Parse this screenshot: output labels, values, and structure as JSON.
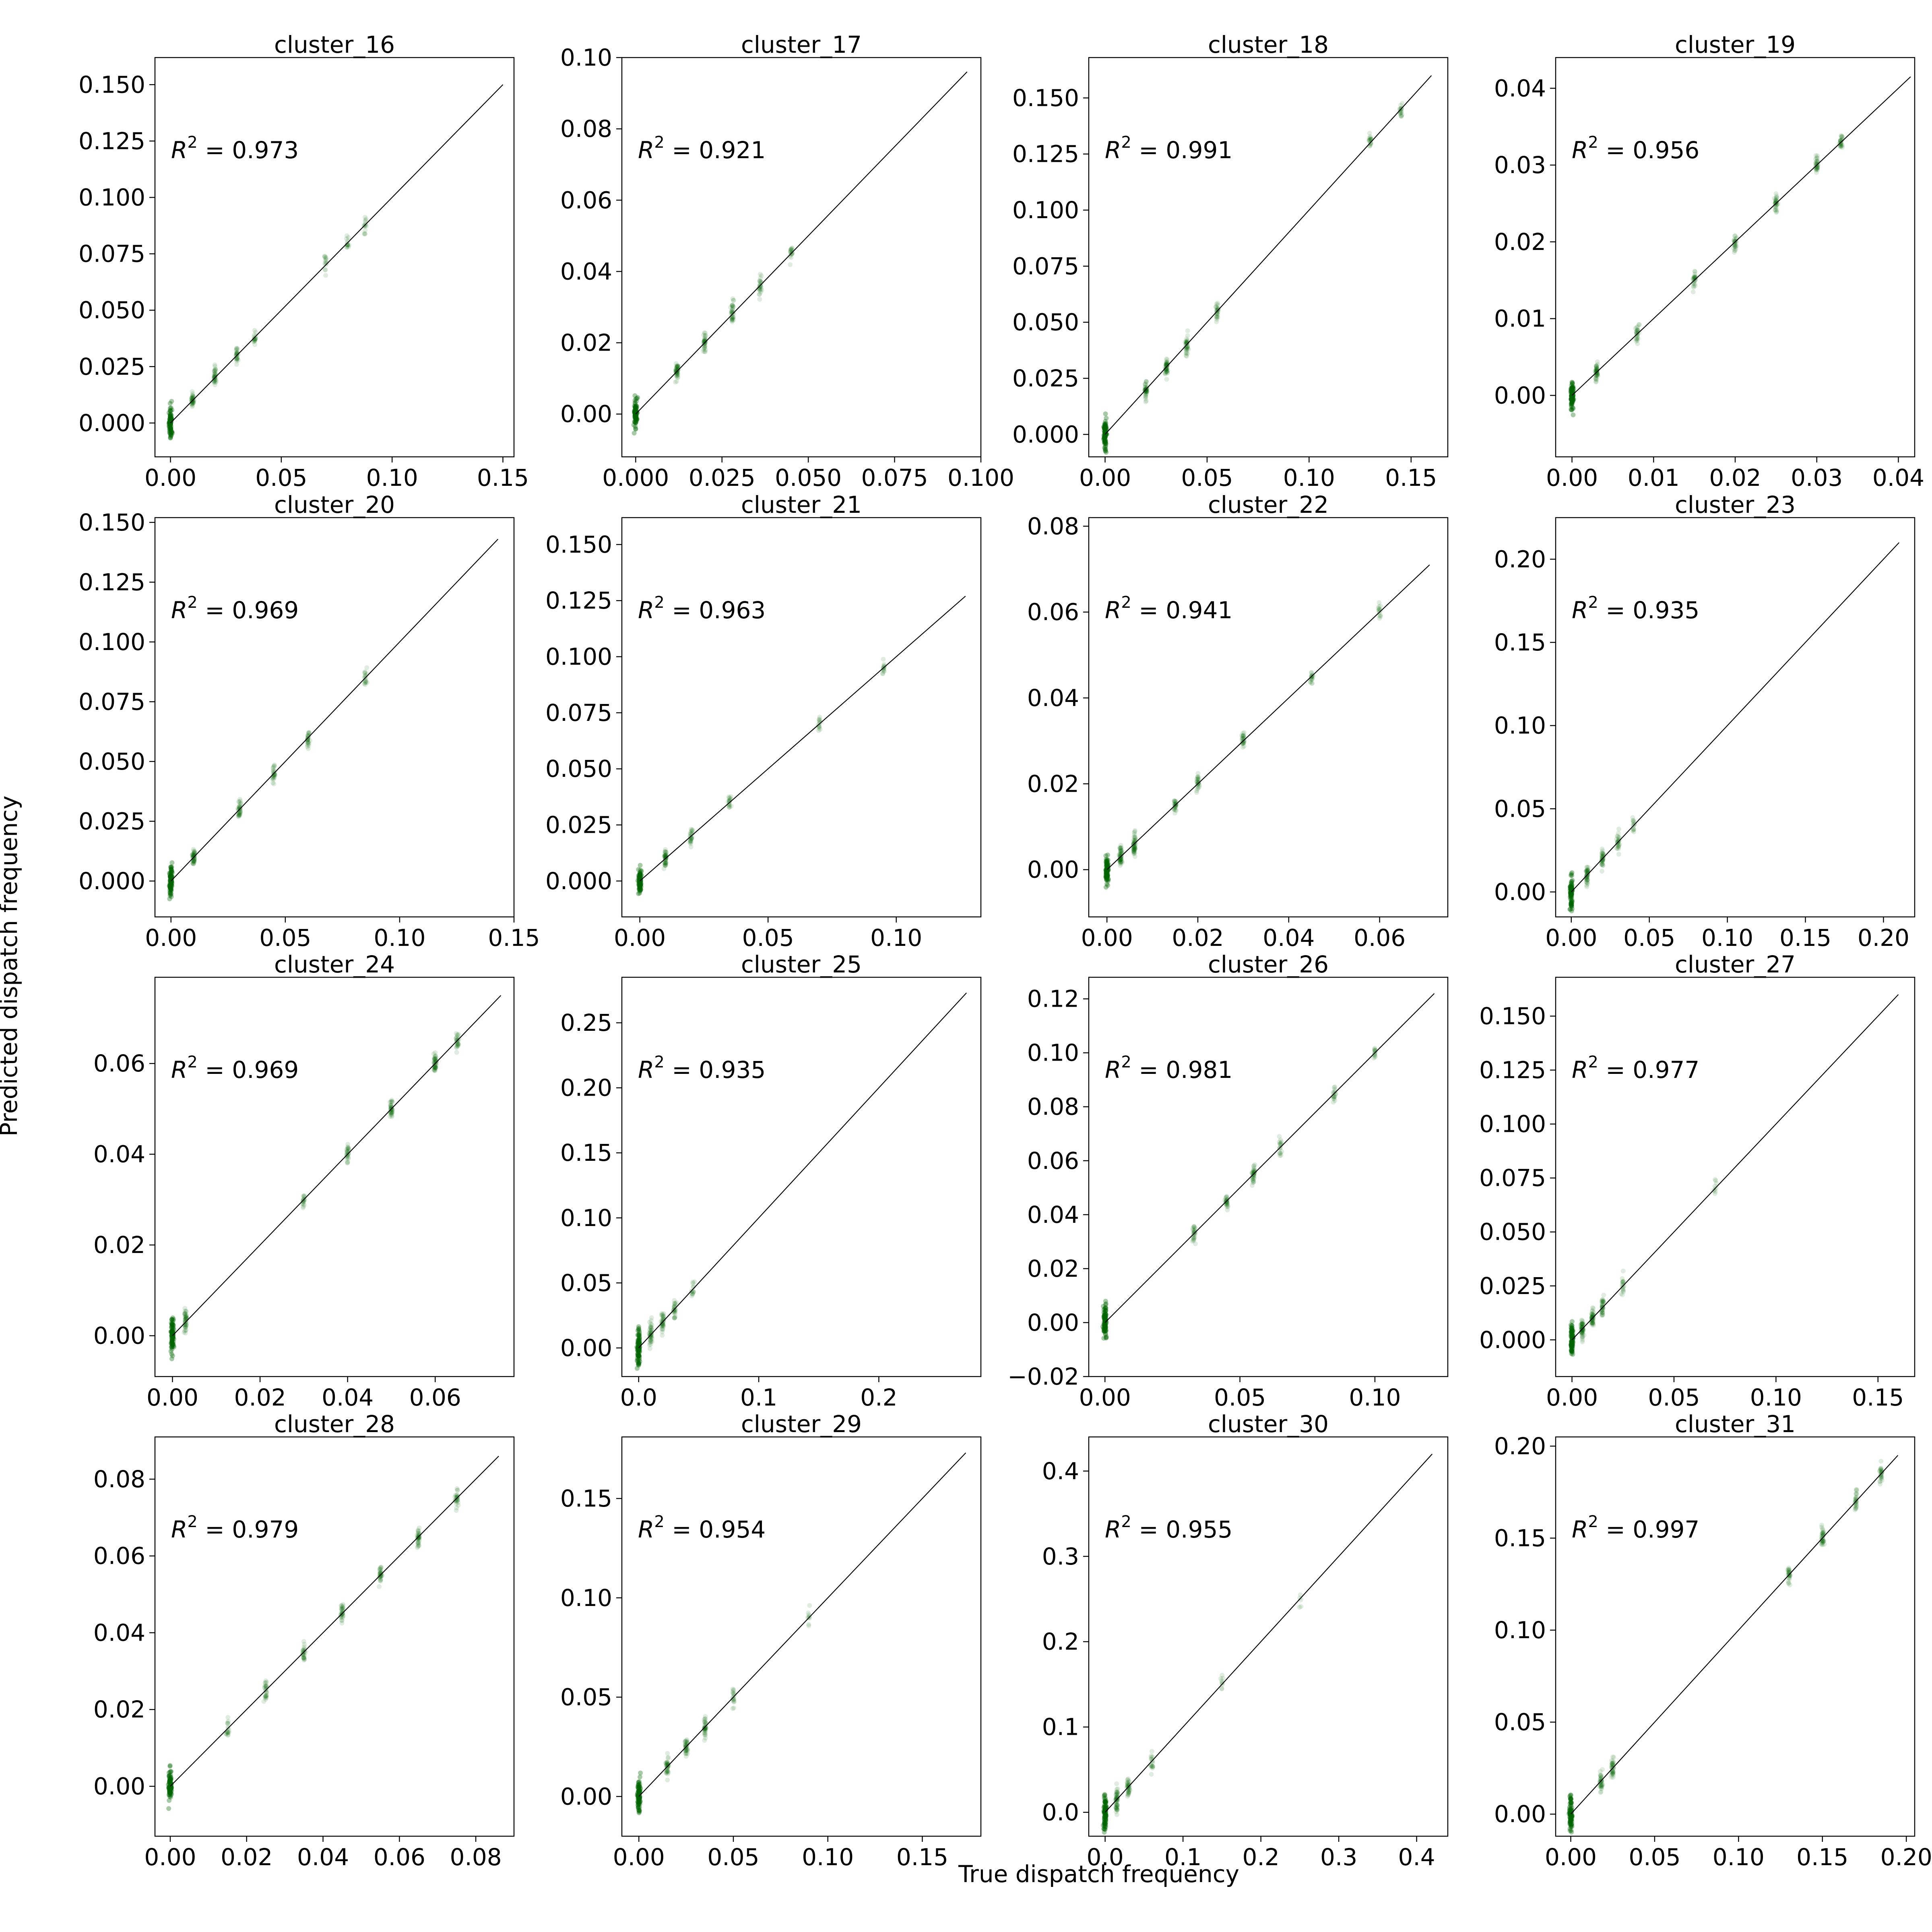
{
  "figure": {
    "xlabel": "True dispatch frequency",
    "ylabel": "Predicted dispatch frequency",
    "point_color": "#006400",
    "line_color": "#000000"
  },
  "chart_data": [
    {
      "type": "scatter",
      "title": "cluster_16",
      "r2": "0.973",
      "xlim": [
        -0.007,
        0.155
      ],
      "ylim": [
        -0.015,
        0.162
      ],
      "xticks": [
        0,
        0.05,
        0.1,
        0.15
      ],
      "xtick_labels": [
        "0.00",
        "0.05",
        "0.10",
        "0.15"
      ],
      "yticks": [
        0,
        0.025,
        0.05,
        0.075,
        0.1,
        0.125,
        0.15
      ],
      "ytick_labels": [
        "0.000",
        "0.025",
        "0.050",
        "0.075",
        "0.100",
        "0.125",
        "0.150"
      ],
      "line": [
        0,
        0.15
      ],
      "clusters": [
        [
          0,
          1,
          0.45
        ],
        [
          0.01,
          0.4,
          0.25
        ],
        [
          0.02,
          0.4,
          0.3
        ],
        [
          0.03,
          0.3,
          0.3
        ],
        [
          0.038,
          0.2,
          0.3
        ],
        [
          0.07,
          0.15,
          0.35
        ],
        [
          0.08,
          0.15,
          0.35
        ],
        [
          0.088,
          0.15,
          0.3
        ]
      ]
    },
    {
      "type": "scatter",
      "title": "cluster_17",
      "r2": "0.921",
      "xlim": [
        -0.004,
        0.1
      ],
      "ylim": [
        -0.012,
        0.1
      ],
      "xticks": [
        0,
        0.025,
        0.05,
        0.075,
        0.1
      ],
      "xtick_labels": [
        "0.000",
        "0.025",
        "0.050",
        "0.075",
        "0.100"
      ],
      "yticks": [
        0,
        0.02,
        0.04,
        0.06,
        0.08,
        0.1
      ],
      "ytick_labels": [
        "0.00",
        "0.02",
        "0.04",
        "0.06",
        "0.08",
        "0.10"
      ],
      "line": [
        0,
        0.096
      ],
      "clusters": [
        [
          0,
          1,
          0.45
        ],
        [
          0.012,
          0.5,
          0.3
        ],
        [
          0.02,
          0.4,
          0.35
        ],
        [
          0.028,
          0.4,
          0.35
        ],
        [
          0.036,
          0.3,
          0.35
        ],
        [
          0.045,
          0.2,
          0.35
        ]
      ]
    },
    {
      "type": "scatter",
      "title": "cluster_18",
      "r2": "0.991",
      "xlim": [
        -0.008,
        0.168
      ],
      "ylim": [
        -0.01,
        0.168
      ],
      "xticks": [
        0,
        0.05,
        0.1,
        0.15
      ],
      "xtick_labels": [
        "0.00",
        "0.05",
        "0.10",
        "0.15"
      ],
      "yticks": [
        0,
        0.025,
        0.05,
        0.075,
        0.1,
        0.125,
        0.15
      ],
      "ytick_labels": [
        "0.000",
        "0.025",
        "0.050",
        "0.075",
        "0.100",
        "0.125",
        "0.150"
      ],
      "line": [
        0,
        0.16
      ],
      "clusters": [
        [
          0,
          1,
          0.45
        ],
        [
          0.02,
          0.5,
          0.3
        ],
        [
          0.03,
          0.5,
          0.3
        ],
        [
          0.04,
          0.4,
          0.3
        ],
        [
          0.055,
          0.3,
          0.3
        ],
        [
          0.13,
          0.2,
          0.3
        ],
        [
          0.145,
          0.2,
          0.3
        ]
      ]
    },
    {
      "type": "scatter",
      "title": "cluster_19",
      "r2": "0.956",
      "xlim": [
        -0.002,
        0.042
      ],
      "ylim": [
        -0.008,
        0.044
      ],
      "xticks": [
        0,
        0.01,
        0.02,
        0.03,
        0.04
      ],
      "xtick_labels": [
        "0.00",
        "0.01",
        "0.02",
        "0.03",
        "0.04"
      ],
      "yticks": [
        0,
        0.01,
        0.02,
        0.03,
        0.04
      ],
      "ytick_labels": [
        "0.00",
        "0.01",
        "0.02",
        "0.03",
        "0.04"
      ],
      "line": [
        0,
        0.0415
      ],
      "clusters": [
        [
          0,
          1,
          0.5
        ],
        [
          0.003,
          0.5,
          0.35
        ],
        [
          0.008,
          0.3,
          0.3
        ],
        [
          0.015,
          0.3,
          0.3
        ],
        [
          0.02,
          0.3,
          0.3
        ],
        [
          0.025,
          0.35,
          0.3
        ],
        [
          0.03,
          0.35,
          0.3
        ],
        [
          0.033,
          0.3,
          0.25
        ]
      ]
    },
    {
      "type": "scatter",
      "title": "cluster_20",
      "r2": "0.969",
      "xlim": [
        -0.007,
        0.15
      ],
      "ylim": [
        -0.015,
        0.152
      ],
      "xticks": [
        0,
        0.05,
        0.1,
        0.15
      ],
      "xtick_labels": [
        "0.00",
        "0.05",
        "0.10",
        "0.15"
      ],
      "yticks": [
        0,
        0.025,
        0.05,
        0.075,
        0.1,
        0.125,
        0.15
      ],
      "ytick_labels": [
        "0.000",
        "0.025",
        "0.050",
        "0.075",
        "0.100",
        "0.125",
        "0.150"
      ],
      "line": [
        0,
        0.143
      ],
      "clusters": [
        [
          0,
          1,
          0.45
        ],
        [
          0.01,
          0.5,
          0.3
        ],
        [
          0.03,
          0.4,
          0.3
        ],
        [
          0.045,
          0.3,
          0.3
        ],
        [
          0.06,
          0.3,
          0.3
        ],
        [
          0.085,
          0.2,
          0.35
        ]
      ]
    },
    {
      "type": "scatter",
      "title": "cluster_21",
      "r2": "0.963",
      "xlim": [
        -0.007,
        0.133
      ],
      "ylim": [
        -0.016,
        0.162
      ],
      "xticks": [
        0,
        0.05,
        0.1
      ],
      "xtick_labels": [
        "0.00",
        "0.05",
        "0.10"
      ],
      "yticks": [
        0,
        0.025,
        0.05,
        0.075,
        0.1,
        0.125,
        0.15
      ],
      "ytick_labels": [
        "0.000",
        "0.025",
        "0.050",
        "0.075",
        "0.100",
        "0.125",
        "0.150"
      ],
      "line": [
        0,
        0.127
      ],
      "clusters": [
        [
          0,
          1,
          0.45
        ],
        [
          0.01,
          0.5,
          0.3
        ],
        [
          0.02,
          0.3,
          0.3
        ],
        [
          0.035,
          0.2,
          0.3
        ],
        [
          0.07,
          0.15,
          0.3
        ],
        [
          0.095,
          0.15,
          0.3
        ]
      ]
    },
    {
      "type": "scatter",
      "title": "cluster_22",
      "r2": "0.941",
      "xlim": [
        -0.004,
        0.075
      ],
      "ylim": [
        -0.011,
        0.082
      ],
      "xticks": [
        0,
        0.02,
        0.04,
        0.06
      ],
      "xtick_labels": [
        "0.00",
        "0.02",
        "0.04",
        "0.06"
      ],
      "yticks": [
        0,
        0.02,
        0.04,
        0.06,
        0.08
      ],
      "ytick_labels": [
        "0.00",
        "0.02",
        "0.04",
        "0.06",
        "0.08"
      ],
      "line": [
        0,
        0.071
      ],
      "clusters": [
        [
          0,
          1,
          0.5
        ],
        [
          0.003,
          0.6,
          0.35
        ],
        [
          0.006,
          0.6,
          0.35
        ],
        [
          0.015,
          0.3,
          0.3
        ],
        [
          0.02,
          0.3,
          0.3
        ],
        [
          0.03,
          0.3,
          0.3
        ],
        [
          0.045,
          0.2,
          0.3
        ],
        [
          0.06,
          0.15,
          0.3
        ]
      ]
    },
    {
      "type": "scatter",
      "title": "cluster_23",
      "r2": "0.935",
      "xlim": [
        -0.01,
        0.22
      ],
      "ylim": [
        -0.015,
        0.225
      ],
      "xticks": [
        0,
        0.05,
        0.1,
        0.15,
        0.2
      ],
      "xtick_labels": [
        "0.00",
        "0.05",
        "0.10",
        "0.15",
        "0.20"
      ],
      "yticks": [
        0,
        0.05,
        0.1,
        0.15,
        0.2
      ],
      "ytick_labels": [
        "0.00",
        "0.05",
        "0.10",
        "0.15",
        "0.20"
      ],
      "line": [
        0,
        0.21
      ],
      "clusters": [
        [
          0,
          1,
          0.5
        ],
        [
          0.01,
          0.5,
          0.35
        ],
        [
          0.02,
          0.4,
          0.3
        ],
        [
          0.03,
          0.3,
          0.3
        ],
        [
          0.04,
          0.15,
          0.3
        ]
      ]
    },
    {
      "type": "scatter",
      "title": "cluster_24",
      "r2": "0.969",
      "xlim": [
        -0.004,
        0.078
      ],
      "ylim": [
        -0.009,
        0.079
      ],
      "xticks": [
        0,
        0.02,
        0.04,
        0.06
      ],
      "xtick_labels": [
        "0.00",
        "0.02",
        "0.04",
        "0.06"
      ],
      "yticks": [
        0,
        0.02,
        0.04,
        0.06
      ],
      "ytick_labels": [
        "0.00",
        "0.02",
        "0.04",
        "0.06"
      ],
      "line": [
        0,
        0.075
      ],
      "clusters": [
        [
          0,
          1,
          0.5
        ],
        [
          0.003,
          0.5,
          0.35
        ],
        [
          0.03,
          0.2,
          0.3
        ],
        [
          0.04,
          0.3,
          0.3
        ],
        [
          0.05,
          0.4,
          0.3
        ],
        [
          0.06,
          0.5,
          0.3
        ],
        [
          0.065,
          0.3,
          0.3
        ]
      ]
    },
    {
      "type": "scatter",
      "title": "cluster_25",
      "r2": "0.935",
      "xlim": [
        -0.014,
        0.285
      ],
      "ylim": [
        -0.022,
        0.285
      ],
      "xticks": [
        0,
        0.1,
        0.2
      ],
      "xtick_labels": [
        "0.0",
        "0.1",
        "0.2"
      ],
      "yticks": [
        0,
        0.05,
        0.1,
        0.15,
        0.2,
        0.25
      ],
      "ytick_labels": [
        "0.00",
        "0.05",
        "0.10",
        "0.15",
        "0.20",
        "0.25"
      ],
      "line": [
        0,
        0.273
      ],
      "clusters": [
        [
          0,
          1,
          0.5
        ],
        [
          0.01,
          0.5,
          0.35
        ],
        [
          0.02,
          0.4,
          0.3
        ],
        [
          0.03,
          0.3,
          0.3
        ],
        [
          0.045,
          0.15,
          0.3
        ]
      ]
    },
    {
      "type": "scatter",
      "title": "cluster_26",
      "r2": "0.981",
      "xlim": [
        -0.006,
        0.127
      ],
      "ylim": [
        -0.02,
        0.128
      ],
      "xticks": [
        0,
        0.05,
        0.1
      ],
      "xtick_labels": [
        "0.00",
        "0.05",
        "0.10"
      ],
      "yticks": [
        -0.02,
        0,
        0.02,
        0.04,
        0.06,
        0.08,
        0.1,
        0.12
      ],
      "ytick_labels": [
        "−0.02",
        "0.00",
        "0.02",
        "0.04",
        "0.06",
        "0.08",
        "0.10",
        "0.12"
      ],
      "line": [
        0,
        0.122
      ],
      "clusters": [
        [
          0,
          1,
          0.5
        ],
        [
          0.033,
          0.3,
          0.3
        ],
        [
          0.045,
          0.3,
          0.3
        ],
        [
          0.055,
          0.4,
          0.3
        ],
        [
          0.065,
          0.2,
          0.3
        ],
        [
          0.085,
          0.2,
          0.3
        ],
        [
          0.1,
          0.15,
          0.3
        ]
      ]
    },
    {
      "type": "scatter",
      "title": "cluster_27",
      "r2": "0.977",
      "xlim": [
        -0.008,
        0.168
      ],
      "ylim": [
        -0.017,
        0.168
      ],
      "xticks": [
        0,
        0.05,
        0.1,
        0.15
      ],
      "xtick_labels": [
        "0.00",
        "0.05",
        "0.10",
        "0.15"
      ],
      "yticks": [
        0,
        0.025,
        0.05,
        0.075,
        0.1,
        0.125,
        0.15
      ],
      "ytick_labels": [
        "0.000",
        "0.025",
        "0.050",
        "0.075",
        "0.100",
        "0.125",
        "0.150"
      ],
      "line": [
        0,
        0.16
      ],
      "clusters": [
        [
          0,
          1,
          0.5
        ],
        [
          0.005,
          0.6,
          0.35
        ],
        [
          0.01,
          0.5,
          0.35
        ],
        [
          0.015,
          0.4,
          0.3
        ],
        [
          0.025,
          0.2,
          0.3
        ],
        [
          0.07,
          0.1,
          0.3
        ]
      ]
    },
    {
      "type": "scatter",
      "title": "cluster_28",
      "r2": "0.979",
      "xlim": [
        -0.004,
        0.09
      ],
      "ylim": [
        -0.013,
        0.091
      ],
      "xticks": [
        0,
        0.02,
        0.04,
        0.06,
        0.08
      ],
      "xtick_labels": [
        "0.00",
        "0.02",
        "0.04",
        "0.06",
        "0.08"
      ],
      "yticks": [
        0,
        0.02,
        0.04,
        0.06,
        0.08
      ],
      "ytick_labels": [
        "0.00",
        "0.02",
        "0.04",
        "0.06",
        "0.08"
      ],
      "line": [
        0,
        0.086
      ],
      "clusters": [
        [
          0,
          1,
          0.5
        ],
        [
          0.015,
          0.2,
          0.3
        ],
        [
          0.025,
          0.3,
          0.3
        ],
        [
          0.035,
          0.3,
          0.3
        ],
        [
          0.045,
          0.35,
          0.3
        ],
        [
          0.055,
          0.35,
          0.3
        ],
        [
          0.065,
          0.4,
          0.3
        ],
        [
          0.075,
          0.3,
          0.3
        ]
      ]
    },
    {
      "type": "scatter",
      "title": "cluster_29",
      "r2": "0.954",
      "xlim": [
        -0.009,
        0.181
      ],
      "ylim": [
        -0.02,
        0.181
      ],
      "xticks": [
        0,
        0.05,
        0.1,
        0.15
      ],
      "xtick_labels": [
        "0.00",
        "0.05",
        "0.10",
        "0.15"
      ],
      "yticks": [
        0,
        0.05,
        0.1,
        0.15
      ],
      "ytick_labels": [
        "0.00",
        "0.05",
        "0.10",
        "0.15"
      ],
      "line": [
        0,
        0.173
      ],
      "clusters": [
        [
          0,
          1,
          0.5
        ],
        [
          0.015,
          0.4,
          0.35
        ],
        [
          0.025,
          0.4,
          0.3
        ],
        [
          0.035,
          0.4,
          0.3
        ],
        [
          0.05,
          0.2,
          0.3
        ],
        [
          0.09,
          0.1,
          0.3
        ]
      ]
    },
    {
      "type": "scatter",
      "title": "cluster_30",
      "r2": "0.955",
      "xlim": [
        -0.021,
        0.44
      ],
      "ylim": [
        -0.028,
        0.44
      ],
      "xticks": [
        0,
        0.1,
        0.2,
        0.3,
        0.4
      ],
      "xtick_labels": [
        "0.0",
        "0.1",
        "0.2",
        "0.3",
        "0.4"
      ],
      "yticks": [
        0,
        0.1,
        0.2,
        0.3,
        0.4
      ],
      "ytick_labels": [
        "0.0",
        "0.1",
        "0.2",
        "0.3",
        "0.4"
      ],
      "line": [
        0,
        0.42
      ],
      "clusters": [
        [
          0,
          1,
          0.5
        ],
        [
          0.015,
          0.6,
          0.35
        ],
        [
          0.03,
          0.4,
          0.3
        ],
        [
          0.06,
          0.2,
          0.3
        ],
        [
          0.15,
          0.1,
          0.3
        ],
        [
          0.25,
          0.05,
          0.3
        ]
      ]
    },
    {
      "type": "scatter",
      "title": "cluster_31",
      "r2": "0.997",
      "xlim": [
        -0.009,
        0.205
      ],
      "ylim": [
        -0.012,
        0.205
      ],
      "xticks": [
        0,
        0.05,
        0.1,
        0.15,
        0.2
      ],
      "xtick_labels": [
        "0.00",
        "0.05",
        "0.10",
        "0.15",
        "0.20"
      ],
      "yticks": [
        0,
        0.05,
        0.1,
        0.15,
        0.2
      ],
      "ytick_labels": [
        "0.00",
        "0.05",
        "0.10",
        "0.15",
        "0.20"
      ],
      "line": [
        0,
        0.195
      ],
      "clusters": [
        [
          0,
          1,
          0.5
        ],
        [
          0.018,
          0.4,
          0.3
        ],
        [
          0.025,
          0.4,
          0.3
        ],
        [
          0.13,
          0.3,
          0.3
        ],
        [
          0.15,
          0.4,
          0.3
        ],
        [
          0.17,
          0.3,
          0.3
        ],
        [
          0.185,
          0.3,
          0.3
        ]
      ]
    }
  ]
}
